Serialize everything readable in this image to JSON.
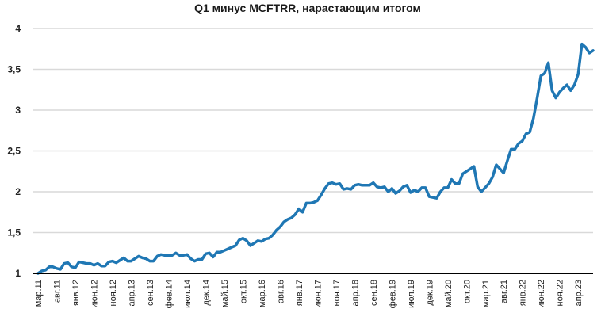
{
  "chart_data": {
    "type": "line",
    "title": "Q1 минус MCFTRR, нарастающим итогом",
    "xlabel": "",
    "ylabel": "",
    "ylim": [
      1,
      4
    ],
    "yticks": [
      "1",
      "1,5",
      "2",
      "2,5",
      "3",
      "3,5",
      "4"
    ],
    "grid": true,
    "legend": null,
    "line_color": "#1f77b4",
    "x_tick_labels": [
      "мар.11",
      "авг.11",
      "янв.12",
      "июн.12",
      "ноя.12",
      "апр.13",
      "сен.13",
      "фев.14",
      "июл.14",
      "дек.14",
      "май.15",
      "окт.15",
      "мар.16",
      "авг.16",
      "янв.17",
      "июн.17",
      "ноя.17",
      "апр.18",
      "сен.18",
      "фев.19",
      "июл.19",
      "дек.19",
      "май.20",
      "окт.20",
      "мар.21",
      "авг.21",
      "янв.22",
      "июн.22",
      "ноя.22",
      "апр.23"
    ],
    "series": [
      {
        "name": "Q1 минус MCFTRR",
        "start": "мар.11",
        "frequency": "monthly",
        "values": [
          1.0,
          1.03,
          1.04,
          1.08,
          1.08,
          1.06,
          1.05,
          1.12,
          1.13,
          1.08,
          1.07,
          1.14,
          1.13,
          1.12,
          1.12,
          1.1,
          1.12,
          1.09,
          1.09,
          1.14,
          1.15,
          1.13,
          1.16,
          1.19,
          1.15,
          1.15,
          1.18,
          1.21,
          1.19,
          1.18,
          1.15,
          1.15,
          1.21,
          1.23,
          1.22,
          1.22,
          1.22,
          1.25,
          1.22,
          1.22,
          1.23,
          1.18,
          1.15,
          1.17,
          1.17,
          1.24,
          1.25,
          1.2,
          1.26,
          1.26,
          1.28,
          1.3,
          1.32,
          1.34,
          1.41,
          1.43,
          1.4,
          1.34,
          1.37,
          1.4,
          1.39,
          1.42,
          1.43,
          1.47,
          1.53,
          1.57,
          1.63,
          1.66,
          1.68,
          1.72,
          1.79,
          1.75,
          1.86,
          1.86,
          1.87,
          1.89,
          1.96,
          2.04,
          2.1,
          2.11,
          2.09,
          2.1,
          2.03,
          2.04,
          2.03,
          2.08,
          2.09,
          2.08,
          2.08,
          2.08,
          2.11,
          2.06,
          2.05,
          2.06,
          2.0,
          2.04,
          1.98,
          2.01,
          2.06,
          2.08,
          1.99,
          2.02,
          2.0,
          2.05,
          2.05,
          1.94,
          1.93,
          1.92,
          2.0,
          2.05,
          2.05,
          2.15,
          2.1,
          2.1,
          2.22,
          2.25,
          2.28,
          2.31,
          2.06,
          2.0,
          2.05,
          2.1,
          2.18,
          2.33,
          2.28,
          2.23,
          2.38,
          2.52,
          2.52,
          2.59,
          2.62,
          2.71,
          2.73,
          2.9,
          3.15,
          3.42,
          3.45,
          3.58,
          3.24,
          3.15,
          3.22,
          3.27,
          3.31,
          3.24,
          3.31,
          3.44,
          3.81,
          3.77,
          3.7,
          3.73
        ]
      }
    ]
  }
}
